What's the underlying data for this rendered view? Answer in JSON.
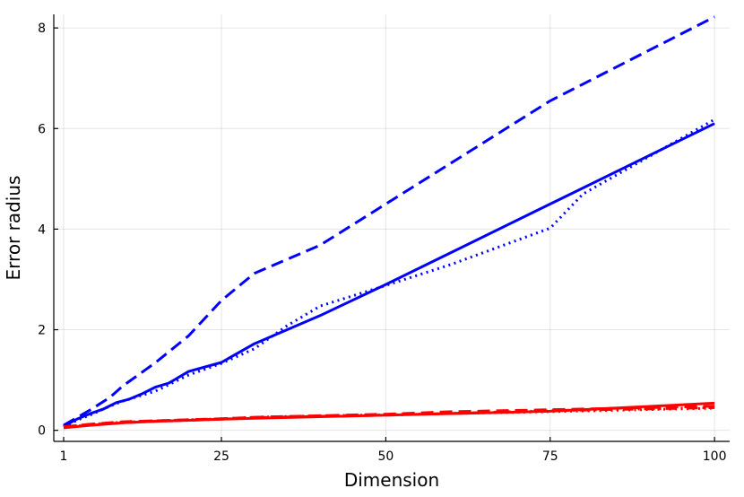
{
  "chart_data": {
    "type": "line",
    "xlabel": "Dimension",
    "ylabel": "Error radius",
    "xlim": [
      -0.5,
      102.3
    ],
    "ylim": [
      -0.22,
      8.27
    ],
    "xticks": [
      1,
      25,
      50,
      75,
      100
    ],
    "yticks": [
      0,
      2,
      4,
      6,
      8
    ],
    "grid": true,
    "legend": "none",
    "colors": {
      "blue": "#0000ff",
      "red": "#ff0000"
    },
    "series": [
      {
        "color": "#0000ff",
        "dash": "solid",
        "x": [
          1,
          3,
          5,
          7,
          9,
          11,
          13,
          15,
          17,
          20,
          25,
          30,
          40,
          50,
          75,
          100
        ],
        "y": [
          0.08,
          0.22,
          0.33,
          0.42,
          0.55,
          0.62,
          0.73,
          0.86,
          0.94,
          1.17,
          1.35,
          1.72,
          2.28,
          2.9,
          4.5,
          6.1
        ]
      },
      {
        "color": "#0000ff",
        "dash": "dot",
        "x": [
          1,
          3,
          5,
          8,
          10,
          15,
          20,
          25,
          30,
          35,
          40,
          50,
          60,
          75,
          80,
          100
        ],
        "y": [
          0.07,
          0.2,
          0.3,
          0.48,
          0.58,
          0.78,
          1.1,
          1.33,
          1.62,
          2.08,
          2.47,
          2.88,
          3.3,
          4.02,
          4.7,
          6.18
        ]
      },
      {
        "color": "#0000ff",
        "dash": "dash",
        "x": [
          1,
          3,
          5,
          8,
          10,
          15,
          20,
          25,
          30,
          40,
          50,
          75,
          100
        ],
        "y": [
          0.1,
          0.25,
          0.4,
          0.65,
          0.88,
          1.35,
          1.88,
          2.58,
          3.12,
          3.68,
          4.5,
          6.55,
          8.22
        ]
      },
      {
        "color": "#ff0000",
        "dash": "solid",
        "x": [
          1,
          5,
          10,
          15,
          20,
          25,
          30,
          40,
          50,
          75,
          100
        ],
        "y": [
          0.05,
          0.1,
          0.15,
          0.18,
          0.2,
          0.22,
          0.24,
          0.27,
          0.3,
          0.38,
          0.54
        ]
      },
      {
        "color": "#ff0000",
        "dash": "dot",
        "x": [
          1,
          5,
          10,
          15,
          20,
          25,
          30,
          40,
          50,
          75,
          100
        ],
        "y": [
          0.06,
          0.12,
          0.16,
          0.19,
          0.21,
          0.23,
          0.26,
          0.29,
          0.31,
          0.37,
          0.44
        ]
      },
      {
        "color": "#ff0000",
        "dash": "dash",
        "x": [
          1,
          5,
          10,
          15,
          20,
          25,
          30,
          40,
          50,
          60,
          75,
          100
        ],
        "y": [
          0.07,
          0.12,
          0.17,
          0.19,
          0.21,
          0.23,
          0.26,
          0.29,
          0.32,
          0.37,
          0.41,
          0.48
        ]
      },
      {
        "color": "#ff0000",
        "dash": "dashdot",
        "x": [
          1,
          5,
          10,
          15,
          20,
          25,
          30,
          40,
          50,
          75,
          100
        ],
        "y": [
          0.06,
          0.11,
          0.15,
          0.18,
          0.2,
          0.22,
          0.25,
          0.28,
          0.3,
          0.39,
          0.45
        ]
      }
    ]
  }
}
